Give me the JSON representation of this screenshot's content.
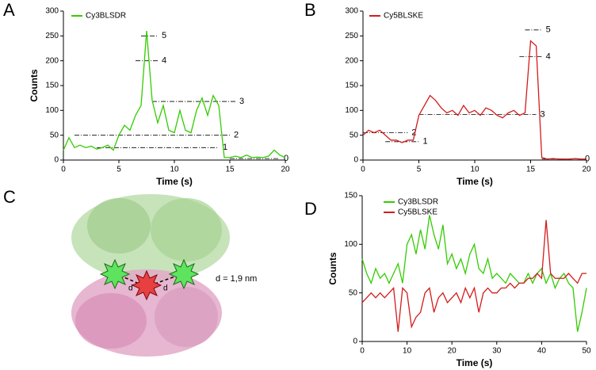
{
  "chart_data": [
    {
      "type": "line",
      "panel": "A",
      "xlabel": "Time (s)",
      "ylabel": "Counts",
      "xlim": [
        0,
        20
      ],
      "xticks": [
        0,
        5,
        10,
        15,
        20
      ],
      "ylim": [
        0,
        300
      ],
      "yticks": [
        0,
        50,
        100,
        150,
        200,
        250,
        300
      ],
      "x": [
        0,
        0.5,
        1,
        1.5,
        2,
        2.5,
        3,
        3.5,
        4,
        4.5,
        5,
        5.5,
        6,
        6.5,
        7,
        7.5,
        8,
        8.5,
        9,
        9.5,
        10,
        10.5,
        11,
        11.5,
        12,
        12.5,
        13,
        13.5,
        14,
        14.5,
        15,
        15.5,
        16,
        16.5,
        17,
        17.5,
        18,
        18.5,
        19,
        19.5,
        20
      ],
      "series": [
        {
          "name": "Cy3BLSDR",
          "color": "#33cc00",
          "values": [
            20,
            45,
            25,
            30,
            25,
            28,
            22,
            25,
            30,
            20,
            50,
            70,
            60,
            90,
            110,
            260,
            120,
            75,
            110,
            60,
            55,
            100,
            60,
            55,
            100,
            125,
            90,
            130,
            110,
            5,
            5,
            8,
            5,
            10,
            5,
            6,
            5,
            8,
            20,
            10,
            5
          ]
        }
      ],
      "levels": [
        {
          "label": "1",
          "value": 25,
          "x": [
            3,
            14
          ]
        },
        {
          "label": "2",
          "value": 50,
          "x": [
            1,
            15
          ]
        },
        {
          "label": "3",
          "value": 118,
          "x": [
            8,
            15.5
          ]
        },
        {
          "label": "4",
          "value": 200,
          "x": [
            6.5,
            8.5
          ]
        },
        {
          "label": "5",
          "value": 250,
          "x": [
            7,
            8.5
          ]
        },
        {
          "label": "0",
          "value": 3,
          "x": [
            15,
            19.5
          ]
        }
      ]
    },
    {
      "type": "line",
      "panel": "B",
      "xlabel": "Time (s)",
      "xlim": [
        0,
        20
      ],
      "xticks": [
        0,
        5,
        10,
        15,
        20
      ],
      "ylim": [
        0,
        300
      ],
      "yticks": [
        0,
        50,
        100,
        150,
        200,
        250,
        300
      ],
      "x": [
        0,
        0.5,
        1,
        1.5,
        2,
        2.5,
        3,
        3.5,
        4,
        4.5,
        5,
        5.5,
        6,
        6.5,
        7,
        7.5,
        8,
        8.5,
        9,
        9.5,
        10,
        10.5,
        11,
        11.5,
        12,
        12.5,
        13,
        13.5,
        14,
        14.5,
        15,
        15.5,
        16,
        16.5,
        17,
        17.5,
        18,
        18.5,
        19,
        19.5,
        20
      ],
      "series": [
        {
          "name": "Cy5BLSKE",
          "color": "#d41b1b",
          "values": [
            50,
            60,
            55,
            60,
            50,
            40,
            40,
            35,
            40,
            40,
            90,
            110,
            130,
            120,
            105,
            95,
            100,
            90,
            110,
            95,
            100,
            90,
            105,
            100,
            90,
            85,
            95,
            100,
            90,
            95,
            240,
            230,
            5,
            2,
            3,
            2,
            2,
            2,
            3,
            2,
            2
          ]
        }
      ],
      "levels": [
        {
          "label": "1",
          "value": 37,
          "x": [
            2,
            5
          ]
        },
        {
          "label": "2",
          "value": 55,
          "x": [
            0,
            4
          ]
        },
        {
          "label": "3",
          "value": 92,
          "x": [
            5,
            15.5
          ]
        },
        {
          "label": "4",
          "value": 208,
          "x": [
            14,
            16
          ]
        },
        {
          "label": "5",
          "value": 262,
          "x": [
            14.5,
            16
          ]
        },
        {
          "label": "0",
          "value": 2,
          "x": [
            16,
            19.5
          ]
        }
      ]
    },
    {
      "type": "line",
      "panel": "D",
      "xlabel": "Time (s)",
      "ylabel": "Counts",
      "xlim": [
        0,
        50
      ],
      "xticks": [
        0,
        10,
        20,
        30,
        40,
        50
      ],
      "ylim": [
        0,
        150
      ],
      "yticks": [
        0,
        50,
        100,
        150
      ],
      "x": [
        0,
        1,
        2,
        3,
        4,
        5,
        6,
        7,
        8,
        9,
        10,
        11,
        12,
        13,
        14,
        15,
        16,
        17,
        18,
        19,
        20,
        21,
        22,
        23,
        24,
        25,
        26,
        27,
        28,
        29,
        30,
        31,
        32,
        33,
        34,
        35,
        36,
        37,
        38,
        39,
        40,
        41,
        42,
        43,
        44,
        45,
        46,
        47,
        48,
        49,
        50
      ],
      "series": [
        {
          "name": "Cy3BLSDR",
          "color": "#33cc00",
          "values": [
            85,
            70,
            60,
            75,
            65,
            70,
            60,
            70,
            80,
            60,
            100,
            110,
            90,
            115,
            95,
            130,
            110,
            95,
            120,
            80,
            90,
            75,
            85,
            70,
            90,
            100,
            75,
            70,
            85,
            65,
            70,
            65,
            60,
            70,
            65,
            60,
            60,
            70,
            60,
            70,
            75,
            60,
            70,
            55,
            65,
            70,
            60,
            55,
            10,
            30,
            55
          ]
        },
        {
          "name": "Cy5BLSKE",
          "color": "#d41b1b",
          "values": [
            40,
            45,
            50,
            45,
            50,
            45,
            50,
            55,
            10,
            55,
            50,
            15,
            25,
            30,
            50,
            55,
            30,
            45,
            50,
            40,
            45,
            50,
            40,
            55,
            45,
            55,
            30,
            50,
            55,
            50,
            50,
            55,
            55,
            60,
            55,
            60,
            60,
            65,
            65,
            70,
            65,
            125,
            70,
            65,
            65,
            65,
            70,
            65,
            60,
            70,
            70
          ]
        }
      ]
    }
  ],
  "illustration": {
    "panel": "C",
    "d_labels": [
      "d",
      "d"
    ],
    "distance_label": "d = 1,9 nm"
  }
}
